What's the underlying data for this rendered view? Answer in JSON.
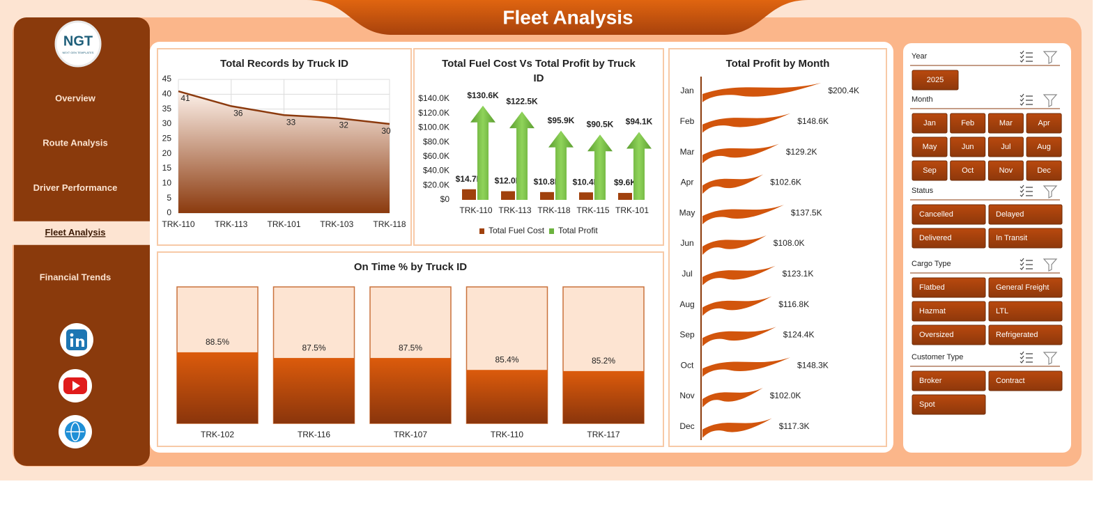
{
  "header": {
    "title": "Fleet Analysis"
  },
  "logo": {
    "text": "NGT",
    "subtitle": "NEXT GEN TEMPLATES"
  },
  "nav": {
    "items": [
      "Overview",
      "Route Analysis",
      "Driver Performance",
      "Fleet Analysis",
      "Financial Trends"
    ],
    "active": 3
  },
  "chart_data": [
    {
      "type": "area",
      "title": "Total Records by Truck ID",
      "categories": [
        "TRK-110",
        "TRK-113",
        "TRK-101",
        "TRK-103",
        "TRK-118"
      ],
      "values": [
        41,
        36,
        33,
        32,
        30
      ],
      "color": "#8b3a0e",
      "ylim": [
        0,
        45
      ],
      "yticks": [
        0,
        5,
        10,
        15,
        20,
        25,
        30,
        35,
        40,
        45
      ],
      "grid": true
    },
    {
      "type": "bar",
      "title": "Total Fuel Cost Vs Total Profit by Truck ID",
      "categories": [
        "TRK-110",
        "TRK-113",
        "TRK-118",
        "TRK-115",
        "TRK-101"
      ],
      "series": [
        {
          "name": "Total Fuel Cost",
          "color": "#a0410d",
          "values": [
            14700,
            12000,
            10800,
            10400,
            9600
          ],
          "value_labels": [
            "$14.7K",
            "$12.0K",
            "$10.8K",
            "$10.4K",
            "$9.6K"
          ]
        },
        {
          "name": "Total Profit",
          "color": "#6cb33f",
          "values": [
            130600,
            122500,
            95900,
            90500,
            94100
          ],
          "value_labels": [
            "$130.6K",
            "$122.5K",
            "$95.9K",
            "$90.5K",
            "$94.1K"
          ]
        }
      ],
      "ylim": [
        0,
        140000
      ],
      "yticks": [
        {
          "value": 0,
          "label": "$0"
        },
        {
          "value": 20000,
          "label": "$20.0K"
        },
        {
          "value": 40000,
          "label": "$40.0K"
        },
        {
          "value": 60000,
          "label": "$60.0K"
        },
        {
          "value": 80000,
          "label": "$80.0K"
        },
        {
          "value": 100000,
          "label": "$100.0K"
        },
        {
          "value": 120000,
          "label": "$120.0K"
        },
        {
          "value": 140000,
          "label": "$140.0K"
        }
      ],
      "legend": "bottom"
    },
    {
      "type": "progress",
      "title": "On Time % by Truck ID",
      "categories": [
        "TRK-102",
        "TRK-116",
        "TRK-107",
        "TRK-110",
        "TRK-117"
      ],
      "values": [
        88.5,
        87.5,
        87.5,
        85.4,
        85.2
      ],
      "value_labels": [
        "88.5%",
        "87.5%",
        "87.5%",
        "85.4%",
        "85.2%"
      ],
      "color": "#c0500f",
      "ylim": [
        76,
        100
      ]
    },
    {
      "type": "barh",
      "title": "Total Profit by Month",
      "categories": [
        "Jan",
        "Feb",
        "Mar",
        "Apr",
        "May",
        "Jun",
        "Jul",
        "Aug",
        "Sep",
        "Oct",
        "Nov",
        "Dec"
      ],
      "values": [
        200400,
        148600,
        129200,
        102600,
        137500,
        108000,
        123100,
        116800,
        124400,
        148300,
        102000,
        117300
      ],
      "value_labels": [
        "$200.4K",
        "$148.6K",
        "$129.2K",
        "$102.6K",
        "$137.5K",
        "$108.0K",
        "$123.1K",
        "$116.8K",
        "$124.4K",
        "$148.3K",
        "$102.0K",
        "$117.3K"
      ],
      "color": "#d2550c",
      "xlim": [
        0,
        220000
      ]
    }
  ],
  "slicers": [
    {
      "title": "Year",
      "items": [
        "2025"
      ]
    },
    {
      "title": "Month",
      "items": [
        "Jan",
        "Feb",
        "Mar",
        "Apr",
        "May",
        "Jun",
        "Jul",
        "Aug",
        "Sep",
        "Oct",
        "Nov",
        "Dec"
      ]
    },
    {
      "title": "Status",
      "items": [
        "Cancelled",
        "Delayed",
        "Delivered",
        "In Transit"
      ]
    },
    {
      "title": "Cargo Type",
      "items": [
        "Flatbed",
        "General Freight",
        "Hazmat",
        "LTL",
        "Oversized",
        "Refrigerated"
      ]
    },
    {
      "title": "Customer Type",
      "items": [
        "Broker",
        "Contract",
        "Spot"
      ]
    }
  ]
}
